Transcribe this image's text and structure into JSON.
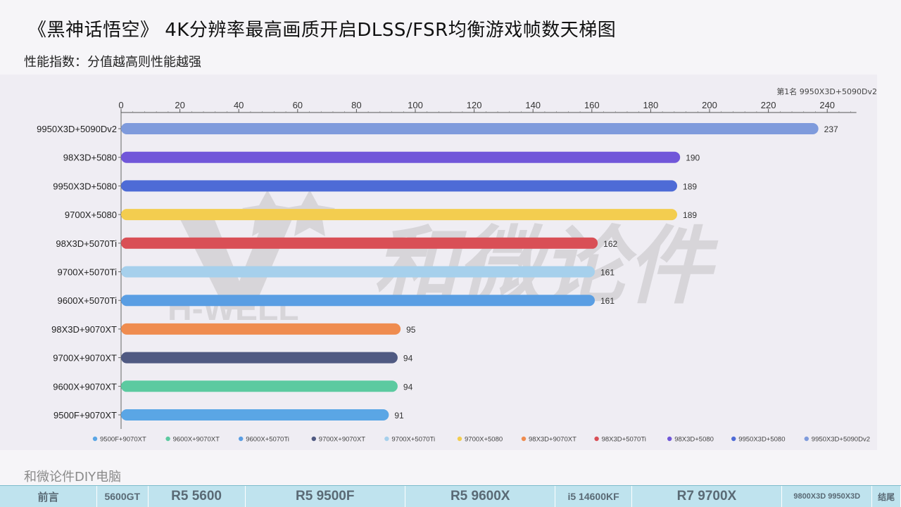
{
  "title": "《黑神话悟空》 4K分辨率最高画质开启DLSS/FSR均衡游戏帧数天梯图",
  "subtitle": "性能指数：分值越高则性能越强",
  "top_note": "第1名 9950X3D+5090Dv2",
  "brand": "和微论件DIY电脑",
  "watermark": {
    "text_cn": "和微论件",
    "text_en": "H-WELL"
  },
  "nav": [
    {
      "label": "前言"
    },
    {
      "label": "5600GT"
    },
    {
      "label": "R5 5600"
    },
    {
      "label": "R5 9500F"
    },
    {
      "label": "R5 9600X"
    },
    {
      "label": "i5 14600KF"
    },
    {
      "label": "R7 9700X"
    },
    {
      "label": "9800X3D  9950X3D"
    },
    {
      "label": "结尾"
    }
  ],
  "chart_data": {
    "type": "bar",
    "orientation": "horizontal",
    "title": "《黑神话悟空》 4K分辨率最高画质开启DLSS/FSR均衡游戏帧数天梯图",
    "subtitle": "性能指数：分值越高则性能越强",
    "x_axis": {
      "position": "top",
      "min": 0,
      "max": 248,
      "ticks": [
        0,
        20,
        40,
        60,
        80,
        100,
        120,
        140,
        160,
        180,
        200,
        220,
        240
      ]
    },
    "categories": [
      "9950X3D+5090Dv2",
      "98X3D+5080",
      "9950X3D+5080",
      "9700X+5080",
      "98X3D+5070Ti",
      "9700X+5070Ti",
      "9600X+5070Ti",
      "98X3D+9070XT",
      "9700X+9070XT",
      "9600X+9070XT",
      "9500F+9070XT"
    ],
    "values": [
      237,
      190,
      189,
      189,
      162,
      161,
      161,
      95,
      94,
      94,
      91
    ],
    "colors": [
      "#7f9bdc",
      "#7157d9",
      "#4e6bd6",
      "#f3cd4f",
      "#d94f56",
      "#a6d0ec",
      "#5a9ee3",
      "#ef8c4f",
      "#505a82",
      "#5ccaa0",
      "#5aa6e5"
    ],
    "legend": {
      "placement": "bottom",
      "items": [
        {
          "label": "9500F+9070XT",
          "color": "#5aa6e5"
        },
        {
          "label": "9600X+9070XT",
          "color": "#5ccaa0"
        },
        {
          "label": "9600X+5070Ti",
          "color": "#5a9ee3"
        },
        {
          "label": "9700X+9070XT",
          "color": "#505a82"
        },
        {
          "label": "9700X+5070Ti",
          "color": "#a6d0ec"
        },
        {
          "label": "9700X+5080",
          "color": "#f3cd4f"
        },
        {
          "label": "98X3D+9070XT",
          "color": "#ef8c4f"
        },
        {
          "label": "98X3D+5070Ti",
          "color": "#d94f56"
        },
        {
          "label": "98X3D+5080",
          "color": "#7157d9"
        },
        {
          "label": "9950X3D+5080",
          "color": "#4e6bd6"
        },
        {
          "label": "9950X3D+5090Dv2",
          "color": "#7f9bdc"
        }
      ]
    },
    "grid": false,
    "data_labels": true
  }
}
